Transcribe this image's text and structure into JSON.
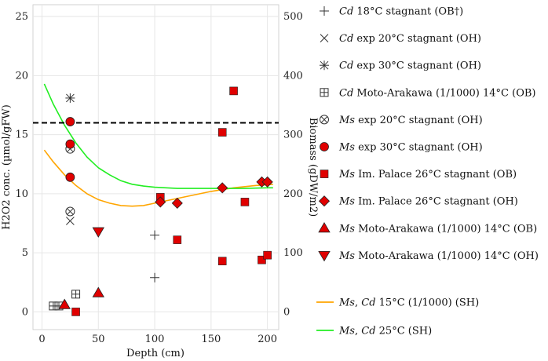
{
  "chart_data": {
    "type": "scatter",
    "xlabel": "Depth (cm)",
    "ylabel": "H2O2 conc. (µmol/gFW)",
    "y2label": "Biomass (gDW/m2)",
    "xlim": [
      -8,
      210
    ],
    "ylim": [
      -1.5,
      26
    ],
    "y2lim": [
      -30,
      520
    ],
    "xticks": [
      0,
      50,
      100,
      150,
      200
    ],
    "yticks": [
      0,
      5,
      10,
      15,
      20,
      25
    ],
    "y2ticks": [
      0,
      100,
      200,
      300,
      400,
      500
    ],
    "threshold": {
      "value": 16,
      "style": "dashed",
      "color": "#000000"
    },
    "series": [
      {
        "name": "Cd 18°C stagnant (OB†)",
        "species": "Cd",
        "desc": "18°C stagnant (OB†)",
        "marker": "plus",
        "color": "#333333",
        "points": [
          [
            100,
            6.5
          ],
          [
            100,
            2.9
          ]
        ]
      },
      {
        "name": "Cd exp 20°C stagnant (OH)",
        "species": "Cd",
        "desc": "exp 20°C stagnant (OH)",
        "marker": "cross",
        "color": "#333333",
        "points": [
          [
            25,
            7.7
          ]
        ]
      },
      {
        "name": "Cd exp 30°C stagnant (OH)",
        "species": "Cd",
        "desc": "exp 30°C stagnant (OH)",
        "marker": "asterisk",
        "color": "#333333",
        "points": [
          [
            25,
            18.1
          ]
        ]
      },
      {
        "name": "Cd Moto-Arakawa (1/1000) 14°C (OB)",
        "species": "Cd",
        "desc": "Moto-Arakawa (1/1000) 14°C (OB)",
        "marker": "boxplus",
        "color": "#333333",
        "points": [
          [
            10,
            0.5
          ],
          [
            15,
            0.5
          ],
          [
            30,
            1.5
          ]
        ]
      },
      {
        "name": "Ms exp 20°C stagnant (OH)",
        "species": "Ms",
        "desc": "exp 20°C stagnant (OH)",
        "marker": "circlecross",
        "color": "#333333",
        "points": [
          [
            25,
            13.8
          ],
          [
            25,
            8.5
          ]
        ]
      },
      {
        "name": "Ms exp 30°C stagnant (OH)",
        "species": "Ms",
        "desc": "exp 30°C stagnant (OH)",
        "marker": "circle",
        "color": "#e00000",
        "points": [
          [
            25,
            16.1
          ],
          [
            25,
            14.2
          ],
          [
            25,
            11.4
          ]
        ]
      },
      {
        "name": "Ms Im. Palace 26°C stagnant (OB)",
        "species": "Ms",
        "desc": "Im. Palace 26°C stagnant (OB)",
        "marker": "square",
        "color": "#e00000",
        "points": [
          [
            30,
            0.0
          ],
          [
            105,
            9.7
          ],
          [
            120,
            6.1
          ],
          [
            160,
            15.2
          ],
          [
            160,
            4.3
          ],
          [
            170,
            18.7
          ],
          [
            180,
            9.3
          ],
          [
            195,
            4.4
          ],
          [
            200,
            4.8
          ]
        ]
      },
      {
        "name": "Ms Im. Palace 26°C stagnant (OH)",
        "species": "Ms",
        "desc": "Im. Palace 26°C stagnant (OH)",
        "marker": "diamond",
        "color": "#e00000",
        "points": [
          [
            105,
            9.3
          ],
          [
            120,
            9.2
          ],
          [
            160,
            10.5
          ],
          [
            195,
            11.0
          ],
          [
            200,
            11.0
          ]
        ]
      },
      {
        "name": "Ms Moto-Arakawa (1/1000) 14°C (OB)",
        "species": "Ms",
        "desc": "Moto-Arakawa (1/1000) 14°C (OB)",
        "marker": "triangle-up",
        "color": "#e00000",
        "points": [
          [
            20,
            0.6
          ],
          [
            50,
            1.6
          ]
        ]
      },
      {
        "name": "Ms Moto-Arakawa (1/1000) 14°C (OH)",
        "species": "Ms",
        "desc": "Moto-Arakawa (1/1000) 14°C (OH)",
        "marker": "triangle-down",
        "color": "#e00000",
        "points": [
          [
            50,
            6.8
          ]
        ]
      }
    ],
    "lines": [
      {
        "name": "Ms, Cd 15°C (1/1000) (SH)",
        "species": "Ms, Cd",
        "desc": "15°C (1/1000) (SH)",
        "color": "#ffa500",
        "points": [
          [
            2,
            13.7
          ],
          [
            10,
            12.7
          ],
          [
            20,
            11.6
          ],
          [
            30,
            10.7
          ],
          [
            40,
            10.0
          ],
          [
            50,
            9.5
          ],
          [
            60,
            9.2
          ],
          [
            70,
            9.0
          ],
          [
            80,
            8.95
          ],
          [
            90,
            9.0
          ],
          [
            100,
            9.2
          ],
          [
            110,
            9.4
          ],
          [
            120,
            9.6
          ],
          [
            130,
            9.8
          ],
          [
            140,
            10.0
          ],
          [
            150,
            10.2
          ],
          [
            160,
            10.35
          ],
          [
            170,
            10.5
          ],
          [
            180,
            10.6
          ],
          [
            190,
            10.7
          ],
          [
            200,
            10.75
          ],
          [
            205,
            10.8
          ]
        ]
      },
      {
        "name": "Ms, Cd 25°C (SH)",
        "species": "Ms, Cd",
        "desc": "25°C (SH)",
        "color": "#22ee22",
        "points": [
          [
            2,
            19.3
          ],
          [
            10,
            17.6
          ],
          [
            20,
            15.8
          ],
          [
            30,
            14.3
          ],
          [
            40,
            13.1
          ],
          [
            50,
            12.2
          ],
          [
            60,
            11.6
          ],
          [
            70,
            11.1
          ],
          [
            80,
            10.8
          ],
          [
            90,
            10.65
          ],
          [
            100,
            10.55
          ],
          [
            110,
            10.5
          ],
          [
            120,
            10.45
          ],
          [
            140,
            10.45
          ],
          [
            160,
            10.45
          ],
          [
            180,
            10.45
          ],
          [
            200,
            10.5
          ],
          [
            205,
            10.5
          ]
        ]
      }
    ]
  }
}
